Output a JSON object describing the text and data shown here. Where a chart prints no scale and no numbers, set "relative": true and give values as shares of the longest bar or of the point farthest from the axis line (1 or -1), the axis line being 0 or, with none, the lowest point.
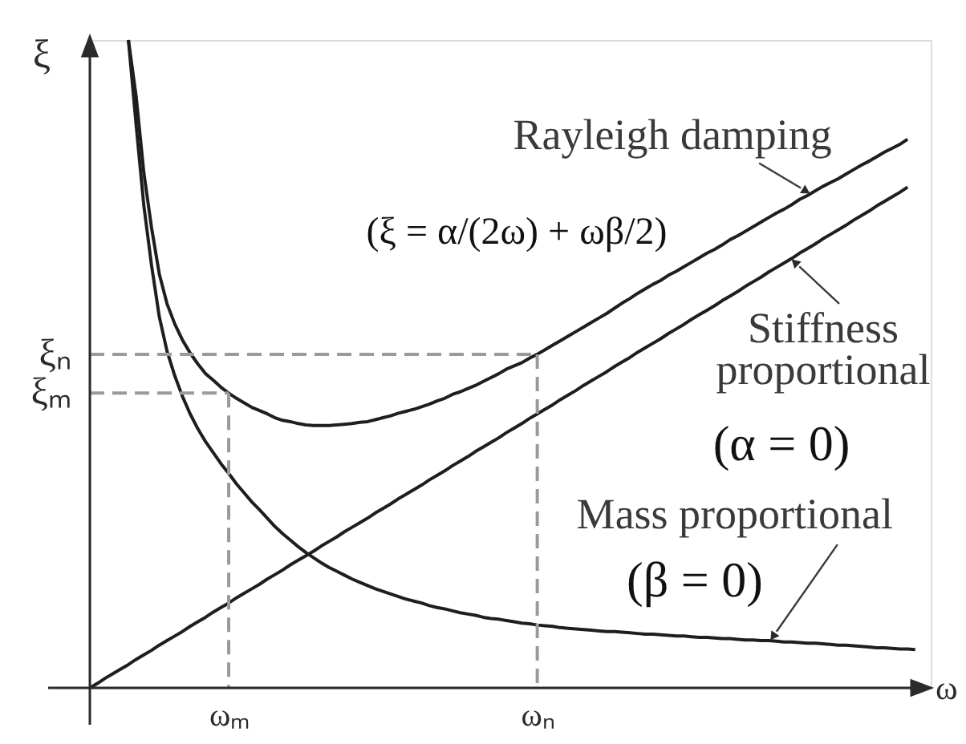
{
  "chart_data": {
    "type": "line",
    "relative": true,
    "xlabel": "ω",
    "ylabel": "ξ",
    "categories": [
      null,
      null,
      null,
      null,
      null,
      null,
      null,
      null,
      null,
      null,
      null,
      null,
      null,
      null,
      null,
      null,
      null,
      null,
      "ωₘ",
      null,
      null,
      null,
      null,
      null,
      null,
      null,
      null,
      null,
      null,
      null,
      null,
      null,
      null,
      null,
      null,
      null,
      null,
      null,
      null,
      null,
      null,
      null,
      null,
      null,
      null,
      null,
      null,
      null,
      null,
      null,
      null,
      null,
      null,
      null,
      null,
      null,
      null,
      null,
      "ωₙ",
      null,
      null,
      null,
      null,
      null,
      null,
      null,
      null,
      null,
      null,
      null,
      null,
      null,
      null,
      null,
      null,
      null,
      null,
      null,
      null,
      null,
      null,
      null,
      null,
      null,
      null,
      null,
      null,
      null,
      null,
      null,
      null,
      null,
      null,
      null,
      null,
      null,
      null,
      null,
      null,
      null,
      null,
      null,
      null,
      null,
      null,
      null,
      null,
      null,
      null,
      null
    ],
    "series": [
      {
        "name": "Rayleigh damping",
        "color": "#1e1e1e",
        "values": [
          null,
          null,
          null,
          null,
          null,
          1.0,
          0.913,
          0.795,
          0.71,
          0.639,
          0.593,
          0.562,
          0.537,
          0.517,
          0.5,
          0.485,
          0.475,
          0.464,
          0.455,
          0.447,
          0.44,
          0.433,
          0.428,
          0.423,
          0.417,
          0.413,
          0.411,
          0.408,
          0.406,
          0.405,
          0.405,
          0.405,
          0.406,
          0.407,
          0.408,
          0.41,
          0.411,
          0.414,
          0.417,
          0.42,
          0.424,
          0.427,
          0.43,
          0.434,
          0.438,
          0.443,
          0.447,
          0.453,
          0.457,
          0.462,
          0.467,
          0.473,
          0.479,
          0.485,
          0.492,
          0.497,
          0.502,
          0.509,
          0.515,
          0.522,
          0.529,
          0.536,
          0.543,
          0.55,
          0.557,
          0.564,
          0.571,
          0.578,
          0.586,
          0.594,
          0.601,
          0.609,
          0.616,
          0.623,
          0.629,
          0.637,
          0.643,
          0.65,
          0.657,
          0.664,
          0.671,
          0.677,
          0.684,
          0.692,
          0.698,
          0.705,
          0.712,
          0.719,
          0.726,
          0.733,
          0.739,
          0.746,
          0.754,
          0.76,
          0.767,
          0.774,
          0.78,
          0.786,
          0.793,
          0.8,
          0.807,
          0.813,
          0.82,
          0.827,
          0.833,
          0.839,
          0.847,
          null,
          null,
          null
        ]
      },
      {
        "name": "Stiffness proportional",
        "color": "#1e1e1e",
        "values": [
          0,
          0.007,
          0.015,
          0.022,
          0.029,
          0.036,
          0.044,
          0.051,
          0.058,
          0.066,
          0.073,
          0.08,
          0.087,
          0.095,
          0.102,
          0.109,
          0.117,
          0.124,
          0.131,
          0.139,
          0.146,
          0.153,
          0.16,
          0.168,
          0.175,
          0.182,
          0.19,
          0.197,
          0.204,
          0.211,
          0.219,
          0.226,
          0.233,
          0.241,
          0.248,
          0.255,
          0.262,
          0.27,
          0.277,
          0.284,
          0.292,
          0.299,
          0.306,
          0.313,
          0.321,
          0.328,
          0.335,
          0.343,
          0.35,
          0.357,
          0.365,
          0.372,
          0.379,
          0.386,
          0.394,
          0.401,
          0.408,
          0.416,
          0.423,
          0.43,
          0.437,
          0.445,
          0.452,
          0.459,
          0.467,
          0.474,
          0.481,
          0.488,
          0.496,
          0.503,
          0.51,
          0.518,
          0.525,
          0.532,
          0.539,
          0.547,
          0.554,
          0.561,
          0.569,
          0.576,
          0.583,
          0.59,
          0.598,
          0.605,
          0.612,
          0.62,
          0.627,
          0.634,
          0.642,
          0.649,
          0.656,
          0.663,
          0.671,
          0.678,
          0.685,
          0.693,
          0.7,
          0.707,
          0.714,
          0.722,
          0.729,
          0.736,
          0.744,
          0.751,
          0.758,
          0.765,
          0.773,
          null,
          null,
          null
        ]
      },
      {
        "name": "Mass proportional",
        "color": "#1e1e1e",
        "values": [
          null,
          null,
          null,
          null,
          null,
          1.0,
          0.869,
          0.744,
          0.652,
          0.573,
          0.52,
          0.482,
          0.45,
          0.423,
          0.4,
          0.38,
          0.363,
          0.346,
          0.331,
          0.315,
          0.301,
          0.287,
          0.275,
          0.262,
          0.249,
          0.238,
          0.228,
          0.218,
          0.209,
          0.201,
          0.193,
          0.186,
          0.18,
          0.174,
          0.168,
          0.163,
          0.158,
          0.153,
          0.149,
          0.145,
          0.141,
          0.137,
          0.134,
          0.131,
          0.127,
          0.124,
          0.122,
          0.119,
          0.116,
          0.114,
          0.112,
          0.109,
          0.107,
          0.106,
          0.104,
          0.102,
          0.1,
          0.099,
          0.097,
          0.096,
          0.095,
          0.093,
          0.092,
          0.091,
          0.09,
          0.089,
          0.088,
          0.087,
          0.087,
          0.086,
          0.085,
          0.084,
          0.083,
          0.083,
          0.082,
          0.081,
          0.08,
          0.08,
          0.079,
          0.078,
          0.078,
          0.077,
          0.076,
          0.076,
          0.075,
          0.074,
          0.074,
          0.073,
          0.073,
          0.072,
          0.071,
          0.071,
          0.07,
          0.069,
          0.069,
          0.068,
          0.067,
          0.066,
          0.066,
          0.065,
          0.064,
          0.063,
          0.062,
          0.062,
          0.061,
          0.06,
          0.06,
          0.059,
          null,
          null
        ]
      }
    ],
    "ref_lines": [
      {
        "axis": "y",
        "value": 0.515,
        "label": "ξₙ",
        "color": "#9a9a9a",
        "line_style": "dashed"
      },
      {
        "axis": "y",
        "value": 0.455,
        "label": "ξₘ",
        "color": "#9a9a9a",
        "line_style": "dashed"
      },
      {
        "axis": "x",
        "value": "ωₙ",
        "color": "#9a9a9a",
        "line_style": "dashed"
      },
      {
        "axis": "x",
        "value": "ωₘ",
        "color": "#9a9a9a",
        "line_style": "dashed"
      }
    ],
    "annotations": [
      "(ξ = α/(2ω) + ωβ/2)",
      "(α = 0)",
      "(β = 0)"
    ]
  }
}
